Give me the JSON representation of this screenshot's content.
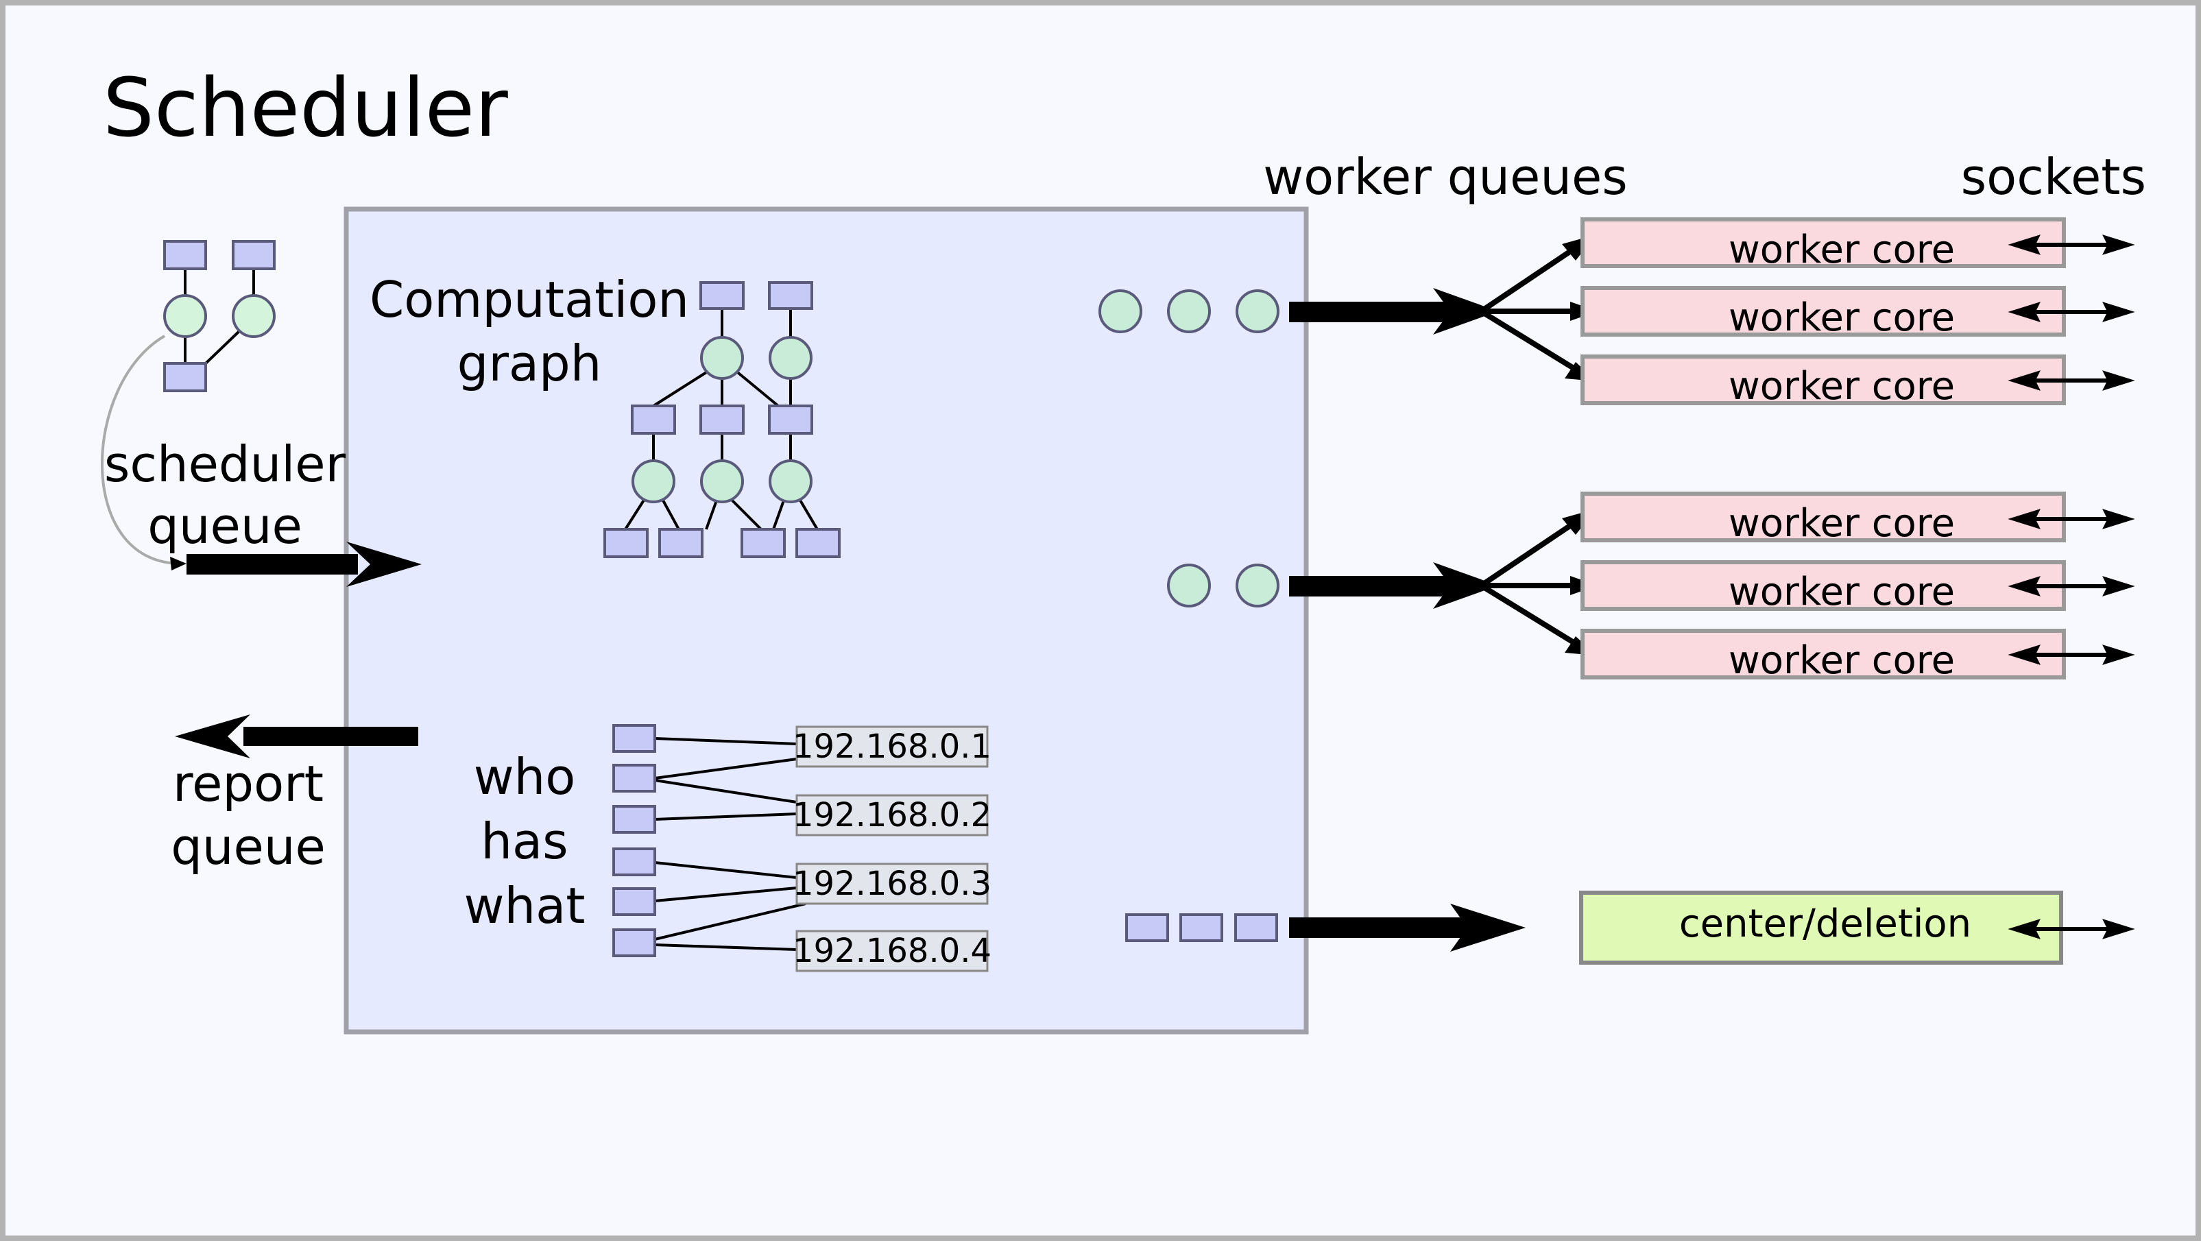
{
  "title": "Scheduler",
  "labels": {
    "scheduler_queue": [
      "scheduler",
      "queue"
    ],
    "report_queue": [
      "report",
      "queue"
    ],
    "computation_graph": [
      "Computation",
      "graph"
    ],
    "who_has_what": [
      "who",
      "has",
      "what"
    ],
    "worker_queues": "worker queues",
    "sockets": "sockets"
  },
  "worker_groups": [
    {
      "cores": [
        "worker core",
        "worker core",
        "worker core"
      ]
    },
    {
      "cores": [
        "worker core",
        "worker core",
        "worker core"
      ]
    }
  ],
  "center": {
    "label": "center/deletion"
  },
  "ip_addresses": [
    "192.168.0.1",
    "192.168.0.2",
    "192.168.0.3",
    "192.168.0.4"
  ],
  "colors": {
    "background": "#f8f9ff",
    "frame_border": "#b3b3b3",
    "scheduler_box_fill": "#e6eaff",
    "scheduler_box_border": "#a0a0a8",
    "task_square": "#c7c9f7",
    "task_square_border": "#5a5a7a",
    "node_circle": "#c9ecd9",
    "node_circle_light": "#d4f5dc",
    "worker_core_fill": "#fadadf",
    "worker_core_border": "#999999",
    "center_fill": "#e0fab5",
    "center_border": "#888888",
    "ip_fill": "#e3e5ec"
  }
}
